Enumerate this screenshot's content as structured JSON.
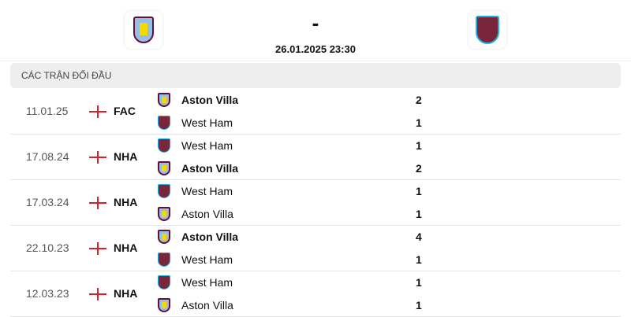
{
  "header": {
    "home_logo": "aston-villa-crest",
    "away_logo": "west-ham-crest",
    "score": "-",
    "datetime": "26.01.2025 23:30"
  },
  "section_title": "Các trận đối đầu",
  "colors": {
    "villa": "#95bfe5",
    "west_ham": "#7a263a",
    "flag_red": "#d8202b"
  },
  "matches": [
    {
      "date": "11.01.25",
      "competition": "FAC",
      "teams": [
        {
          "name": "Aston Villa",
          "goals": "2",
          "winner": true,
          "club": "villa"
        },
        {
          "name": "West Ham",
          "goals": "1",
          "winner": false,
          "club": "wh"
        }
      ]
    },
    {
      "date": "17.08.24",
      "competition": "NHA",
      "teams": [
        {
          "name": "West Ham",
          "goals": "1",
          "winner": false,
          "club": "wh"
        },
        {
          "name": "Aston Villa",
          "goals": "2",
          "winner": true,
          "club": "villa"
        }
      ]
    },
    {
      "date": "17.03.24",
      "competition": "NHA",
      "teams": [
        {
          "name": "West Ham",
          "goals": "1",
          "winner": false,
          "club": "wh"
        },
        {
          "name": "Aston Villa",
          "goals": "1",
          "winner": false,
          "club": "villa"
        }
      ]
    },
    {
      "date": "22.10.23",
      "competition": "NHA",
      "teams": [
        {
          "name": "Aston Villa",
          "goals": "4",
          "winner": true,
          "club": "villa"
        },
        {
          "name": "West Ham",
          "goals": "1",
          "winner": false,
          "club": "wh"
        }
      ]
    },
    {
      "date": "12.03.23",
      "competition": "NHA",
      "teams": [
        {
          "name": "West Ham",
          "goals": "1",
          "winner": false,
          "club": "wh"
        },
        {
          "name": "Aston Villa",
          "goals": "1",
          "winner": false,
          "club": "villa"
        }
      ]
    }
  ]
}
